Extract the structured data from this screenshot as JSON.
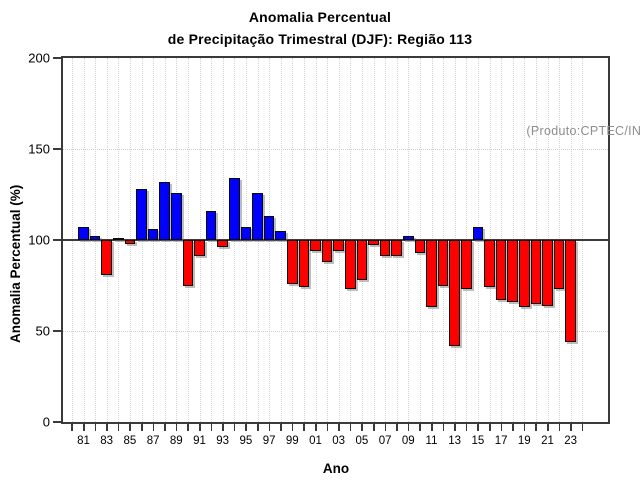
{
  "title": {
    "line1": "Anomalia Percentual",
    "line2": "de Precipitação Trimestral (DJF): Região 113"
  },
  "annotation": "(Produto:CPTEC/INPE)",
  "axes": {
    "ylabel": "Anomalia Percentual (%)",
    "xlabel": "Ano"
  },
  "colors": {
    "positive_bar": "#0000ff",
    "negative_bar": "#ff0000",
    "frame": "#3a3a3a",
    "grid": "#d6d6d6",
    "annotation_text": "#8e8e8e"
  },
  "chart_data": {
    "type": "bar",
    "title": "Anomalia Percentual de Precipitação Trimestral (DJF): Região 113",
    "xlabel": "Ano",
    "ylabel": "Anomalia Percentual (%)",
    "ylim": [
      0,
      200
    ],
    "baseline": 100,
    "grid": "dotted vertical per year; dotted horizontal at 50 and 150; solid line at 100",
    "color_rule": "value >= 100 blue (#0000ff), value < 100 red (#ff0000)",
    "years": [
      1981,
      1982,
      1983,
      1984,
      1985,
      1986,
      1987,
      1988,
      1989,
      1990,
      1991,
      1992,
      1993,
      1994,
      1995,
      1996,
      1997,
      1998,
      1999,
      2000,
      2001,
      2002,
      2003,
      2004,
      2005,
      2006,
      2007,
      2008,
      2009,
      2010,
      2011,
      2012,
      2013,
      2014,
      2015,
      2016,
      2017,
      2018,
      2019,
      2020,
      2021,
      2022,
      2023
    ],
    "values": [
      107,
      102,
      81,
      101,
      98,
      128,
      106,
      132,
      126,
      75,
      91,
      116,
      96,
      134,
      107,
      126,
      113,
      105,
      76,
      74,
      94,
      88,
      94,
      73,
      78,
      97,
      91,
      91,
      102,
      93,
      63,
      75,
      42,
      73,
      107,
      74,
      67,
      66,
      63,
      65,
      64,
      73,
      44
    ],
    "y_ticks": [
      0,
      50,
      100,
      150,
      200
    ],
    "y_tick_labels": [
      "0",
      "50",
      "100",
      "150",
      "200"
    ],
    "x_tick_years": [
      1981,
      1983,
      1985,
      1987,
      1989,
      1991,
      1993,
      1995,
      1997,
      1999,
      2001,
      2003,
      2005,
      2007,
      2009,
      2011,
      2013,
      2015,
      2017,
      2019,
      2021,
      2023
    ],
    "x_tick_labels": [
      "81",
      "83",
      "85",
      "87",
      "89",
      "91",
      "93",
      "95",
      "97",
      "99",
      "01",
      "03",
      "05",
      "07",
      "09",
      "11",
      "13",
      "15",
      "17",
      "19",
      "21",
      "23"
    ],
    "x_minor_tick_years_range": [
      1980,
      2024
    ],
    "hgrid_dotted_at": [
      50,
      150
    ]
  }
}
